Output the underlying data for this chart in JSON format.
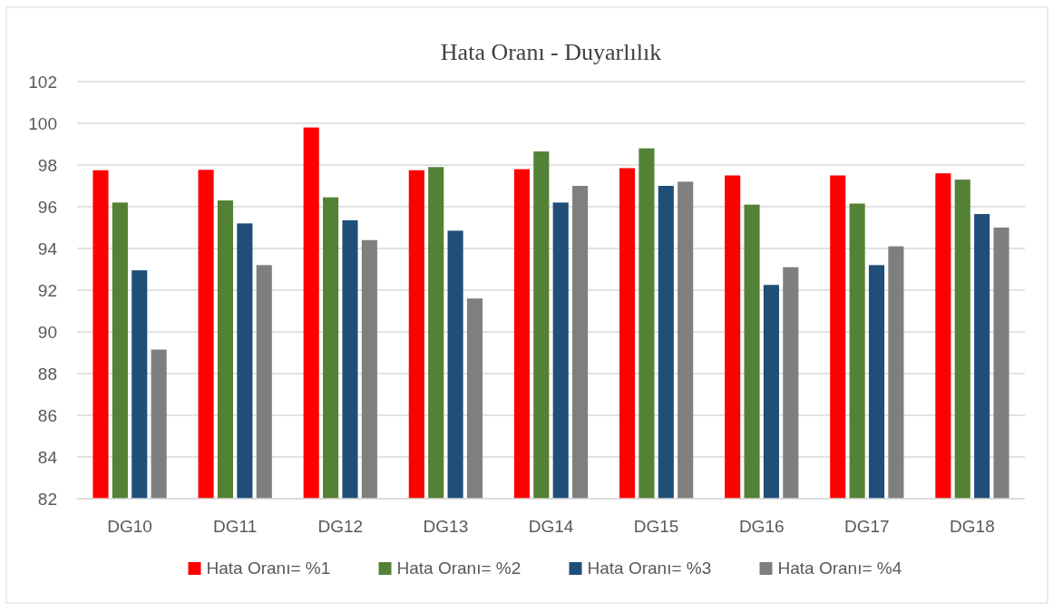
{
  "chart_data": {
    "type": "bar",
    "title": "Hata Oranı - Duyarlılık",
    "categories": [
      "DG10",
      "DG11",
      "DG12",
      "DG13",
      "DG14",
      "DG15",
      "DG16",
      "DG17",
      "DG18"
    ],
    "series": [
      {
        "name": "Hata Oranı= %1",
        "color": "#ff0000",
        "values": [
          97.75,
          97.77,
          99.8,
          97.75,
          97.8,
          97.85,
          97.5,
          97.5,
          97.6
        ]
      },
      {
        "name": "Hata Oranı= %2",
        "color": "#538135",
        "values": [
          96.2,
          96.3,
          96.45,
          97.9,
          98.65,
          98.8,
          96.1,
          96.15,
          97.3
        ]
      },
      {
        "name": "Hata Oranı= %3",
        "color": "#1f4e79",
        "values": [
          92.95,
          95.2,
          95.35,
          94.85,
          96.2,
          97.0,
          92.25,
          93.2,
          95.65
        ]
      },
      {
        "name": "Hata Oranı= %4",
        "color": "#7f7f7f",
        "values": [
          89.15,
          93.2,
          94.4,
          91.6,
          97.0,
          97.2,
          93.1,
          94.1,
          95.0
        ]
      }
    ],
    "ylim": [
      82,
      102
    ],
    "yticks": [
      82,
      84,
      86,
      88,
      90,
      92,
      94,
      96,
      98,
      100,
      102
    ],
    "grid": "y",
    "legend": "bottom"
  }
}
